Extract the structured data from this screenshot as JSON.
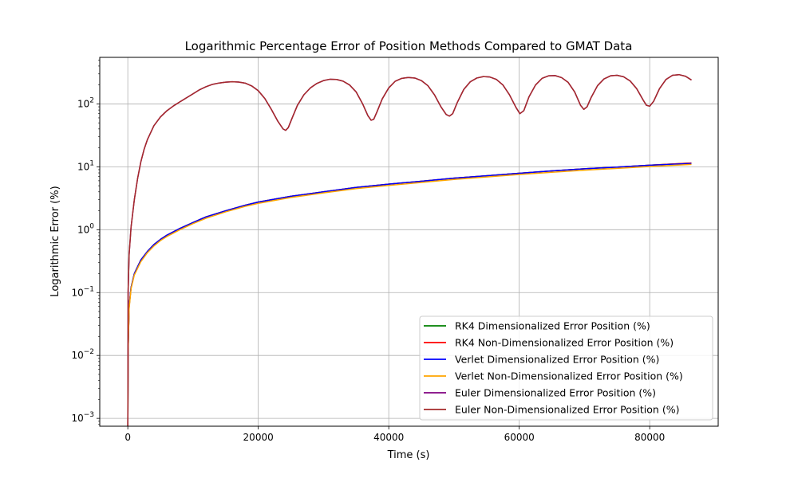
{
  "chart_data": {
    "type": "line",
    "title": "Logarithmic Percentage Error of Position Methods Compared to GMAT Data",
    "xlabel": "Time (s)",
    "ylabel": "Logarithmic Error (%)",
    "xlim": [
      -4300,
      90500
    ],
    "ylim": [
      0.00075,
      550
    ],
    "yscale": "log",
    "grid": true,
    "legend_position": "lower-right",
    "x_ticks": [
      0,
      20000,
      40000,
      60000,
      80000
    ],
    "x_tick_labels": [
      "0",
      "20000",
      "40000",
      "60000",
      "80000"
    ],
    "y_ticks": [
      0.001,
      0.01,
      0.1,
      1,
      10,
      100
    ],
    "y_tick_labels": [
      {
        "base": "10",
        "exp": "−3"
      },
      {
        "base": "10",
        "exp": "−2"
      },
      {
        "base": "10",
        "exp": "−1"
      },
      {
        "base": "10",
        "exp": "0"
      },
      {
        "base": "10",
        "exp": "1"
      },
      {
        "base": "10",
        "exp": "2"
      }
    ],
    "series": [
      {
        "name": "RK4 Dimensionalized Error Position (%)",
        "color": "#008000",
        "x": [
          0,
          50,
          200,
          500,
          1000,
          2000,
          3000,
          4000,
          5000,
          6000,
          8000,
          10000,
          12000,
          15000,
          18000,
          20000,
          25000,
          30000,
          35000,
          40000,
          45000,
          50000,
          55000,
          60000,
          65000,
          70000,
          75000,
          80000,
          86400
        ],
        "y": [
          0.0005,
          0.012,
          0.06,
          0.12,
          0.2,
          0.33,
          0.45,
          0.58,
          0.7,
          0.82,
          1.05,
          1.3,
          1.6,
          2.0,
          2.45,
          2.75,
          3.4,
          4.0,
          4.7,
          5.3,
          5.9,
          6.6,
          7.2,
          7.9,
          8.6,
          9.3,
          9.9,
          10.6,
          11.5
        ]
      },
      {
        "name": "RK4 Non-Dimensionalized Error Position (%)",
        "color": "#ff0000",
        "x": [
          0,
          50,
          200,
          500,
          1000,
          2000,
          3000,
          4000,
          5000,
          6000,
          8000,
          10000,
          12000,
          15000,
          18000,
          20000,
          25000,
          30000,
          35000,
          40000,
          45000,
          50000,
          55000,
          60000,
          65000,
          70000,
          75000,
          80000,
          86400
        ],
        "y": [
          0.0005,
          0.012,
          0.06,
          0.12,
          0.2,
          0.33,
          0.45,
          0.58,
          0.7,
          0.82,
          1.05,
          1.3,
          1.6,
          2.0,
          2.45,
          2.75,
          3.4,
          4.0,
          4.7,
          5.3,
          5.9,
          6.6,
          7.2,
          7.9,
          8.6,
          9.3,
          9.9,
          10.6,
          11.5
        ]
      },
      {
        "name": "Verlet Dimensionalized Error Position (%)",
        "color": "#0000ff",
        "x": [
          0,
          50,
          200,
          500,
          1000,
          2000,
          3000,
          4000,
          5000,
          6000,
          8000,
          10000,
          12000,
          15000,
          18000,
          20000,
          25000,
          30000,
          35000,
          40000,
          45000,
          50000,
          55000,
          60000,
          65000,
          70000,
          75000,
          80000,
          86400
        ],
        "y": [
          0.0005,
          0.012,
          0.06,
          0.12,
          0.2,
          0.33,
          0.45,
          0.58,
          0.7,
          0.82,
          1.05,
          1.3,
          1.6,
          2.0,
          2.45,
          2.75,
          3.4,
          4.0,
          4.7,
          5.3,
          5.9,
          6.6,
          7.2,
          7.9,
          8.6,
          9.3,
          9.9,
          10.6,
          11.3
        ]
      },
      {
        "name": "Verlet Non-Dimensionalized Error Position (%)",
        "color": "#ffa500",
        "x": [
          0,
          50,
          200,
          500,
          1000,
          2000,
          3000,
          4000,
          5000,
          6000,
          8000,
          10000,
          12000,
          15000,
          18000,
          20000,
          25000,
          30000,
          35000,
          40000,
          45000,
          50000,
          55000,
          60000,
          65000,
          70000,
          75000,
          80000,
          86400
        ],
        "y": [
          0.0005,
          0.011,
          0.055,
          0.115,
          0.19,
          0.31,
          0.43,
          0.55,
          0.67,
          0.78,
          1.0,
          1.25,
          1.52,
          1.92,
          2.35,
          2.62,
          3.25,
          3.85,
          4.5,
          5.05,
          5.65,
          6.3,
          6.9,
          7.55,
          8.2,
          8.85,
          9.45,
          10.1,
          10.9
        ]
      },
      {
        "name": "Euler Dimensionalized Error Position (%)",
        "color": "#800080",
        "x": [
          0,
          50,
          200,
          500,
          1000,
          1500,
          2000,
          2500,
          3000,
          4000,
          5000,
          6000,
          7000,
          8000,
          9000,
          10000,
          11000,
          12000,
          13000,
          14000,
          15000,
          16000,
          17000,
          18000,
          19000,
          20000,
          21000,
          22000,
          23000,
          23800,
          24200,
          24600,
          25200,
          26000,
          27000,
          28000,
          29000,
          30000,
          31000,
          32000,
          33000,
          34000,
          35000,
          36000,
          36800,
          37300,
          37700,
          38200,
          39000,
          40000,
          41000,
          42000,
          43000,
          44000,
          45000,
          46000,
          47000,
          48000,
          48800,
          49300,
          49800,
          50500,
          51500,
          52500,
          53500,
          54500,
          55500,
          56500,
          57500,
          58500,
          59500,
          60100,
          60700,
          61500,
          62500,
          63500,
          64500,
          65500,
          66500,
          67500,
          68500,
          69400,
          69900,
          70400,
          71000,
          72000,
          73000,
          74000,
          75000,
          76000,
          77000,
          78000,
          79000,
          79500,
          80000,
          80600,
          81500,
          82500,
          83500,
          84500,
          85500,
          86400
        ],
        "y": [
          0.0005,
          0.1,
          0.4,
          1.1,
          3.0,
          6.5,
          12.0,
          19.0,
          27.0,
          45.0,
          62.0,
          78.0,
          93.0,
          108.0,
          125.0,
          145.0,
          168.0,
          188.0,
          205.0,
          215.0,
          222.0,
          225.0,
          223.0,
          214.0,
          193.0,
          162.0,
          122.0,
          82.0,
          53.0,
          40.0,
          38.0,
          42.0,
          60.0,
          95.0,
          140.0,
          180.0,
          212.0,
          235.0,
          247.0,
          245.0,
          230.0,
          200.0,
          155.0,
          100.0,
          65.0,
          55.0,
          57.0,
          75.0,
          120.0,
          180.0,
          230.0,
          255.0,
          263.0,
          258.0,
          235.0,
          195.0,
          140.0,
          90.0,
          68.0,
          64.0,
          70.0,
          105.0,
          170.0,
          225.0,
          258.0,
          272.0,
          268.0,
          245.0,
          200.0,
          140.0,
          88.0,
          70.0,
          78.0,
          130.0,
          200.0,
          255.0,
          280.0,
          282.0,
          262.0,
          220.0,
          155.0,
          95.0,
          82.0,
          90.0,
          125.0,
          195.0,
          250.0,
          280.0,
          285.0,
          270.0,
          232.0,
          175.0,
          115.0,
          95.0,
          92.0,
          110.0,
          175.0,
          245.0,
          285.0,
          292.0,
          275.0,
          240.0
        ]
      },
      {
        "name": "Euler Non-Dimensionalized Error Position (%)",
        "color": "#a52a2a",
        "x": [
          0,
          50,
          200,
          500,
          1000,
          1500,
          2000,
          2500,
          3000,
          4000,
          5000,
          6000,
          7000,
          8000,
          9000,
          10000,
          11000,
          12000,
          13000,
          14000,
          15000,
          16000,
          17000,
          18000,
          19000,
          20000,
          21000,
          22000,
          23000,
          23800,
          24200,
          24600,
          25200,
          26000,
          27000,
          28000,
          29000,
          30000,
          31000,
          32000,
          33000,
          34000,
          35000,
          36000,
          36800,
          37300,
          37700,
          38200,
          39000,
          40000,
          41000,
          42000,
          43000,
          44000,
          45000,
          46000,
          47000,
          48000,
          48800,
          49300,
          49800,
          50500,
          51500,
          52500,
          53500,
          54500,
          55500,
          56500,
          57500,
          58500,
          59500,
          60100,
          60700,
          61500,
          62500,
          63500,
          64500,
          65500,
          66500,
          67500,
          68500,
          69400,
          69900,
          70400,
          71000,
          72000,
          73000,
          74000,
          75000,
          76000,
          77000,
          78000,
          79000,
          79500,
          80000,
          80600,
          81500,
          82500,
          83500,
          84500,
          85500,
          86400
        ],
        "y": [
          0.0005,
          0.1,
          0.4,
          1.1,
          3.0,
          6.5,
          12.0,
          19.0,
          27.0,
          45.0,
          62.0,
          78.0,
          93.0,
          108.0,
          125.0,
          145.0,
          168.0,
          188.0,
          205.0,
          215.0,
          222.0,
          225.0,
          223.0,
          214.0,
          193.0,
          162.0,
          122.0,
          82.0,
          53.0,
          40.0,
          38.0,
          42.0,
          60.0,
          95.0,
          140.0,
          180.0,
          212.0,
          235.0,
          247.0,
          245.0,
          230.0,
          200.0,
          155.0,
          100.0,
          65.0,
          55.0,
          57.0,
          75.0,
          120.0,
          180.0,
          230.0,
          255.0,
          263.0,
          258.0,
          235.0,
          195.0,
          140.0,
          90.0,
          68.0,
          64.0,
          70.0,
          105.0,
          170.0,
          225.0,
          258.0,
          272.0,
          268.0,
          245.0,
          200.0,
          140.0,
          88.0,
          70.0,
          78.0,
          130.0,
          200.0,
          255.0,
          280.0,
          282.0,
          262.0,
          220.0,
          155.0,
          95.0,
          82.0,
          90.0,
          125.0,
          195.0,
          250.0,
          280.0,
          285.0,
          270.0,
          232.0,
          175.0,
          115.0,
          95.0,
          92.0,
          110.0,
          175.0,
          245.0,
          285.0,
          292.0,
          275.0,
          240.0
        ]
      }
    ]
  }
}
